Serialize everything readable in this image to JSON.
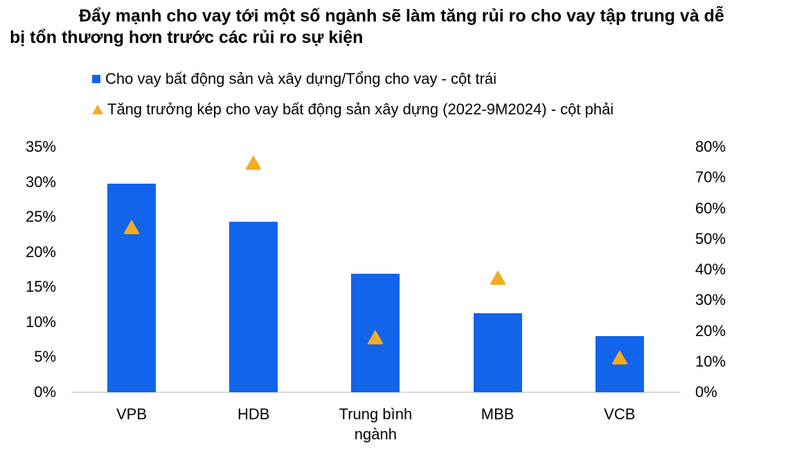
{
  "title": {
    "lines": [
      "Đẩy mạnh cho vay tới một số ngành sẽ làm tăng rủi ro cho vay tập trung và dễ",
      "bị tổn thương hơn trước các rủi ro sự kiện"
    ]
  },
  "legend": {
    "items": [
      {
        "icon": "blue-square",
        "label": "Cho vay bất động sản và xây dựng/Tổng cho vay - cột trái"
      },
      {
        "icon": "yellow-triangle",
        "label": "Tăng trưởng kép cho vay bất động sản xây dựng (2022-9M2024) - cột phải"
      }
    ]
  },
  "chart_data": {
    "type": "bar",
    "title": "Đẩy mạnh cho vay tới một số ngành sẽ làm tăng rủi ro cho vay tập trung và dễ bị tổn thương hơn trước các rủi ro sự kiện",
    "categories": [
      "VPB",
      "HDB",
      "Trung bình ngành",
      "MBB",
      "VCB"
    ],
    "series": [
      {
        "name": "Cho vay bất động sản và xây dựng/Tổng cho vay - cột trái",
        "type": "bar",
        "axis": "left",
        "marker": "square",
        "color": "#1264EB",
        "values": [
          29.8,
          24.3,
          16.9,
          11.3,
          8.0
        ]
      },
      {
        "name": "Tăng trưởng kép cho vay bất động sản xây dựng (2022-9M2024) - cột phải",
        "type": "scatter",
        "axis": "right",
        "marker": "triangle",
        "color": "#F4AC20",
        "values": [
          54,
          75,
          18,
          37.5,
          11.5
        ]
      }
    ],
    "left_axis": {
      "min": 0,
      "max": 35,
      "unit": "%",
      "ticks": [
        "35%",
        "30%",
        "25%",
        "20%",
        "15%",
        "10%",
        "5%",
        "0%"
      ]
    },
    "right_axis": {
      "min": 0,
      "max": 80,
      "unit": "%",
      "ticks": [
        "80%",
        "70%",
        "60%",
        "50%",
        "40%",
        "30%",
        "20%",
        "10%",
        "0%"
      ]
    },
    "grid": false,
    "legend_position": "top-left"
  },
  "colors": {
    "bar_blue": "#1264EB",
    "triangle_amber": "#F4AC20",
    "axis_line": "#D9D9D9",
    "text": "#000000"
  }
}
